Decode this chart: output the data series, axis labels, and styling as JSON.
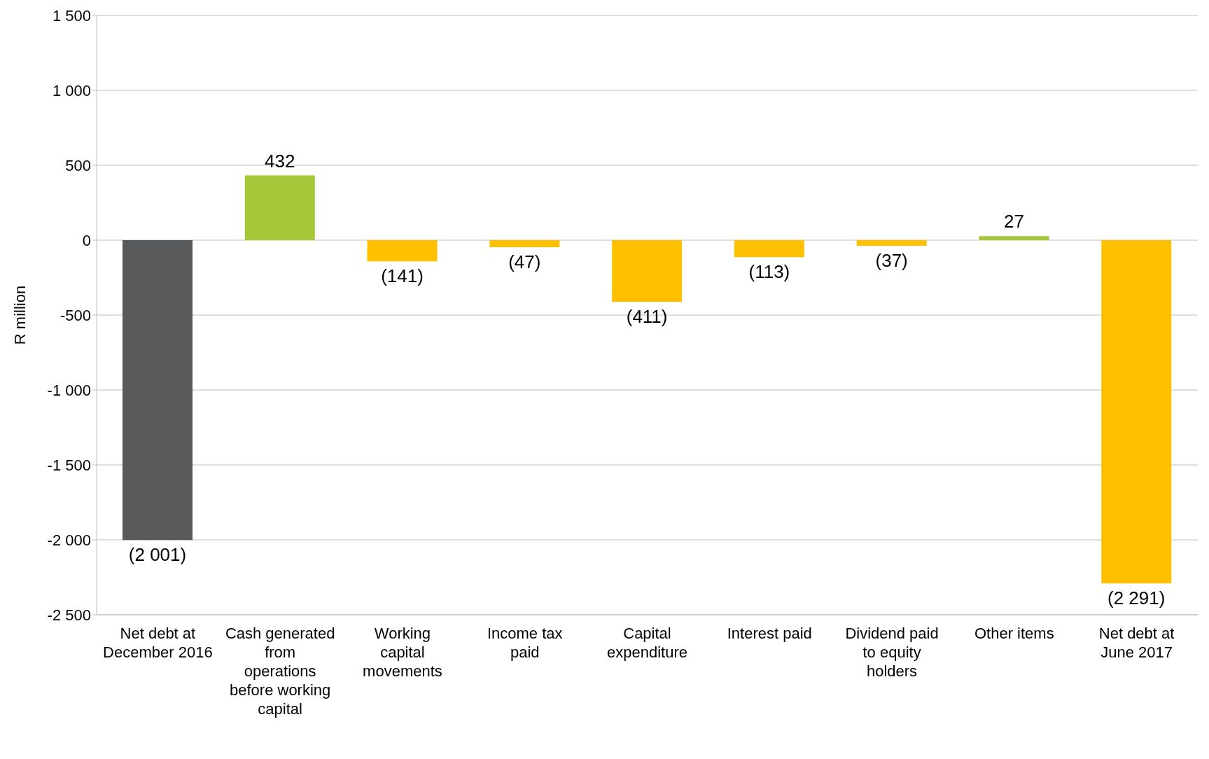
{
  "chart_data": {
    "type": "bar",
    "ylabel": "R million",
    "categories": [
      "Net debt at December 2016",
      "Cash generated from operations before working capital",
      "Working capital movements",
      "Income tax paid",
      "Capital expenditure",
      "Interest paid",
      "Dividend paid to equity holders",
      "Other items",
      "Net debt at June 2017"
    ],
    "values": [
      -2001,
      432,
      -141,
      -47,
      -411,
      -113,
      -37,
      27,
      -2291
    ],
    "colors": [
      "#58595b",
      "#a6c738",
      "#ffc000",
      "#ffc000",
      "#ffc000",
      "#ffc000",
      "#ffc000",
      "#a6c738",
      "#ffc000"
    ],
    "value_labels": [
      "(2 001)",
      "432",
      "(141)",
      "(47)",
      "(411)",
      "(113)",
      "(37)",
      "27",
      "(2 291)"
    ],
    "ylim": [
      -2500,
      1500
    ],
    "yticks": [
      {
        "value": -2500,
        "label": "-2 500"
      },
      {
        "value": -2000,
        "label": "-2 000"
      },
      {
        "value": -1500,
        "label": "-1 500"
      },
      {
        "value": -1000,
        "label": "-1 000"
      },
      -500,
      0,
      500,
      {
        "value": 1000,
        "label": "1 000"
      },
      {
        "value": 1500,
        "label": "1 500"
      }
    ],
    "grid": "y"
  }
}
